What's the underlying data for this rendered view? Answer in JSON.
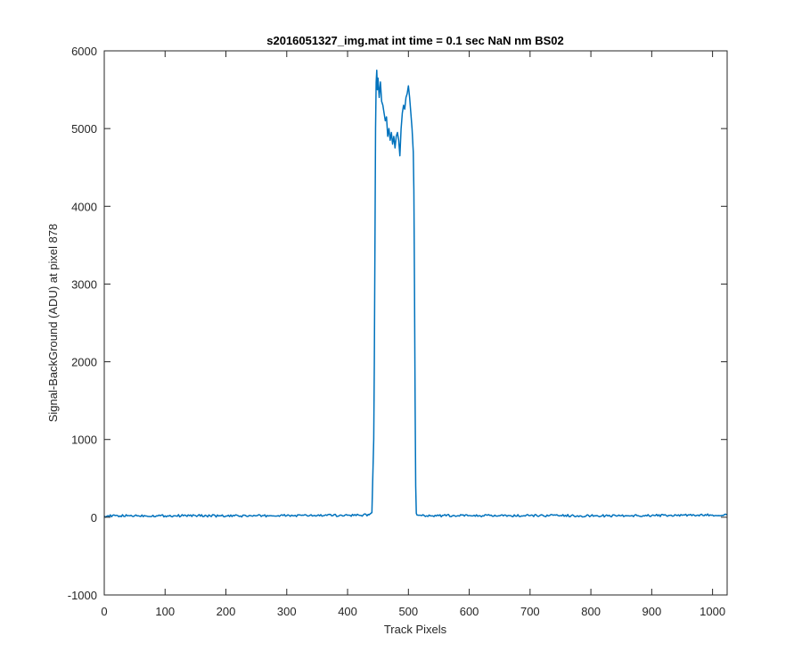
{
  "chart_data": {
    "type": "line",
    "title": "s2016051327_img.mat int time = 0.1 sec  NaN nm BS02",
    "xlabel": "Track Pixels",
    "ylabel": "Signal-BackGround (ADU) at pixel 878",
    "xlim": [
      0,
      1024
    ],
    "ylim": [
      -1000,
      6000
    ],
    "xticks": [
      0,
      100,
      200,
      300,
      400,
      500,
      600,
      700,
      800,
      900,
      1000
    ],
    "yticks": [
      -1000,
      0,
      1000,
      2000,
      3000,
      4000,
      5000,
      6000
    ],
    "grid": false,
    "line_color": "#0072BD",
    "axes_color": "#262626",
    "series": [
      {
        "x": [
          0,
          50,
          100,
          150,
          200,
          250,
          300,
          350,
          400,
          435,
          440,
          443,
          444,
          445,
          446,
          447,
          448,
          449,
          450,
          452,
          454,
          456,
          458,
          460,
          462,
          464,
          466,
          468,
          470,
          472,
          474,
          476,
          478,
          480,
          482,
          484,
          486,
          488,
          490,
          492,
          494,
          496,
          498,
          500,
          502,
          504,
          506,
          508,
          509,
          510,
          511,
          512,
          513,
          514,
          516,
          520,
          550,
          600,
          650,
          700,
          750,
          800,
          850,
          900,
          950,
          1000,
          1024
        ],
        "y": [
          15,
          20,
          18,
          22,
          15,
          18,
          20,
          22,
          25,
          30,
          60,
          1000,
          2000,
          3500,
          5000,
          5600,
          5750,
          5500,
          5650,
          5400,
          5600,
          5350,
          5300,
          5200,
          5100,
          5150,
          4900,
          5000,
          4850,
          4950,
          4800,
          4900,
          4750,
          4900,
          4950,
          4850,
          4650,
          5000,
          5200,
          5300,
          5250,
          5400,
          5450,
          5550,
          5400,
          5200,
          5000,
          4700,
          4200,
          3000,
          1500,
          400,
          50,
          30,
          25,
          25,
          20,
          22,
          18,
          20,
          22,
          18,
          20,
          22,
          25,
          28,
          30
        ]
      }
    ]
  }
}
